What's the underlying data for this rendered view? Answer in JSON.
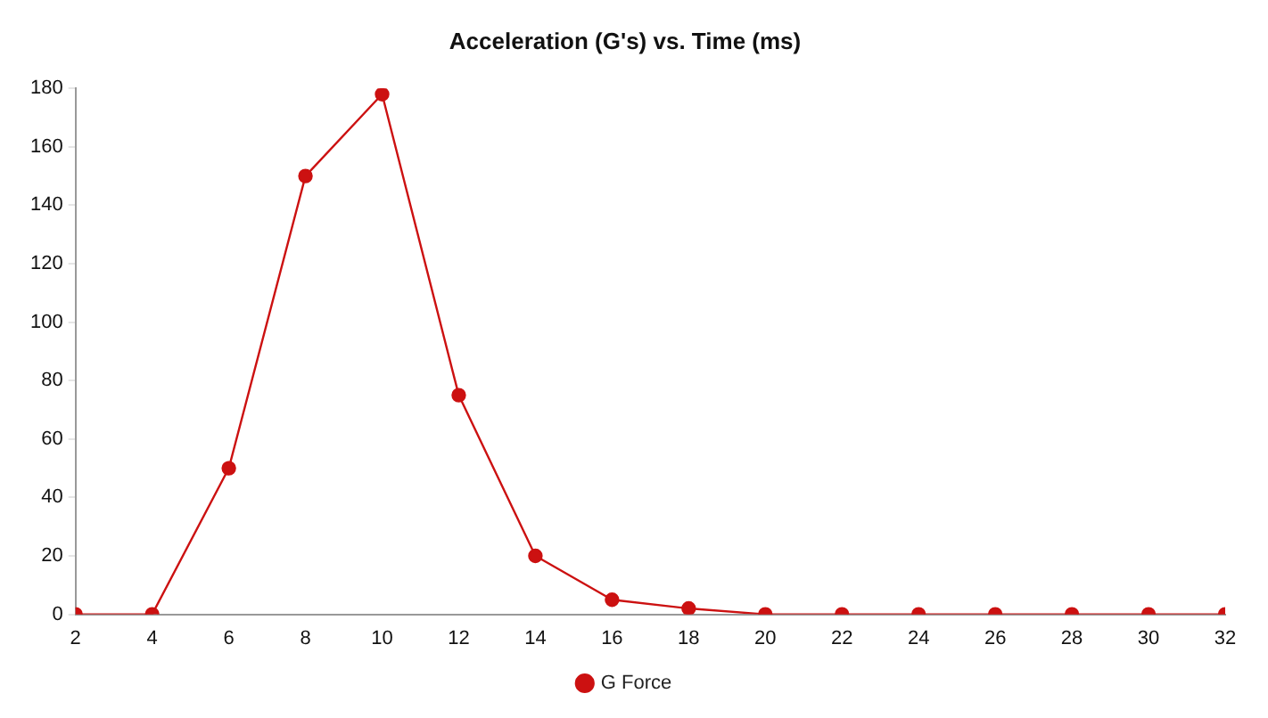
{
  "chart_data": {
    "type": "line",
    "title": "Acceleration (G's) vs. Time (ms)",
    "x": [
      2,
      4,
      6,
      8,
      10,
      12,
      14,
      16,
      18,
      20,
      22,
      24,
      26,
      28,
      30,
      32
    ],
    "series": [
      {
        "name": "G Force",
        "color": "#cc1111",
        "values": [
          0,
          0,
          50,
          150,
          178,
          75,
          20,
          5,
          2,
          0,
          0,
          0,
          0,
          0,
          0,
          0
        ]
      }
    ],
    "xlim": [
      2,
      32
    ],
    "xticks": [
      2,
      4,
      6,
      8,
      10,
      12,
      14,
      16,
      18,
      20,
      22,
      24,
      26,
      28,
      30,
      32
    ],
    "ylim": [
      0,
      180
    ],
    "yticks": [
      0,
      20,
      40,
      60,
      80,
      100,
      120,
      140,
      160,
      180
    ],
    "grid": false,
    "legend": "bottom",
    "marker": "circle",
    "line_style": "solid"
  }
}
